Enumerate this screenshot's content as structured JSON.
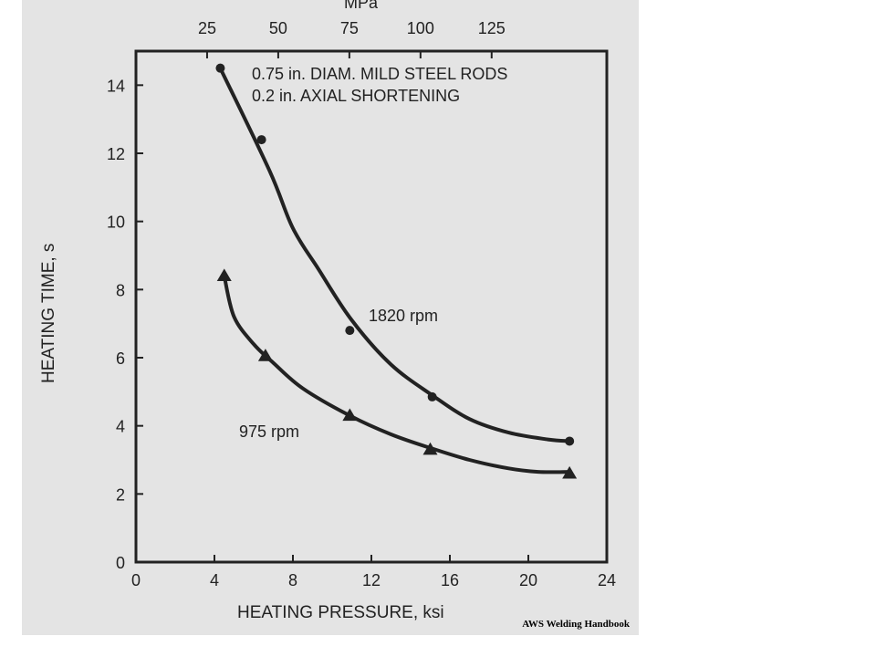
{
  "chart_data": {
    "type": "line",
    "title": "",
    "annotations": [
      "0.75 in. DIAM. MILD STEEL RODS",
      "0.2 in. AXIAL SHORTENING"
    ],
    "xlabel": "HEATING PRESSURE, ksi",
    "ylabel": "HEATING TIME, s",
    "x2label": "MPa",
    "xlim": [
      0,
      24
    ],
    "ylim": [
      0,
      15
    ],
    "xticks": [
      0,
      4,
      8,
      12,
      16,
      20,
      24
    ],
    "yticks": [
      0,
      2,
      4,
      6,
      8,
      10,
      12,
      14
    ],
    "x2ticks": [
      25,
      50,
      75,
      100,
      125
    ],
    "grid": false,
    "series": [
      {
        "name": "1820 rpm",
        "marker": "circle",
        "points": [
          {
            "x": 4.3,
            "y": 14.5
          },
          {
            "x": 6.4,
            "y": 12.4
          },
          {
            "x": 10.9,
            "y": 6.8
          },
          {
            "x": 15.1,
            "y": 4.85
          },
          {
            "x": 22.1,
            "y": 3.55
          }
        ],
        "curve": [
          [
            4.3,
            14.5
          ],
          [
            6.8,
            11.5
          ],
          [
            8.0,
            9.8
          ],
          [
            9.3,
            8.6
          ],
          [
            11.0,
            7.1
          ],
          [
            13.0,
            5.8
          ],
          [
            15.1,
            4.9
          ],
          [
            17.0,
            4.2
          ],
          [
            19.0,
            3.8
          ],
          [
            21.0,
            3.6
          ],
          [
            22.1,
            3.55
          ]
        ]
      },
      {
        "name": "975 rpm",
        "marker": "triangle",
        "points": [
          {
            "x": 4.5,
            "y": 8.4
          },
          {
            "x": 6.6,
            "y": 6.05
          },
          {
            "x": 10.9,
            "y": 4.3
          },
          {
            "x": 15.0,
            "y": 3.3
          },
          {
            "x": 22.1,
            "y": 2.6
          }
        ],
        "curve": [
          [
            4.5,
            8.4
          ],
          [
            5.0,
            7.2
          ],
          [
            6.0,
            6.4
          ],
          [
            7.0,
            5.85
          ],
          [
            8.5,
            5.1
          ],
          [
            10.9,
            4.3
          ],
          [
            13.0,
            3.75
          ],
          [
            15.0,
            3.35
          ],
          [
            17.0,
            3.0
          ],
          [
            19.0,
            2.75
          ],
          [
            20.5,
            2.65
          ],
          [
            22.1,
            2.65
          ]
        ]
      }
    ]
  },
  "source": "AWS Welding Handbook"
}
